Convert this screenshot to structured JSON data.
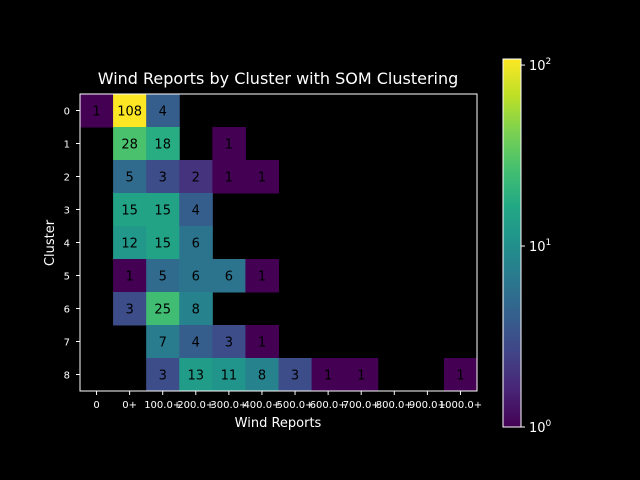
{
  "chart_data": {
    "type": "heatmap",
    "title": "Wind Reports by Cluster with SOM Clustering",
    "xlabel": "Wind Reports",
    "ylabel": "Cluster",
    "x_categories": [
      "0",
      "0+",
      "100.0+",
      "200.0+",
      "300.0+",
      "400.0+",
      "500.0+",
      "600.0+",
      "700.0+",
      "800.0+",
      "900.0+",
      "1000.0+"
    ],
    "y_categories": [
      "0",
      "1",
      "2",
      "3",
      "4",
      "5",
      "6",
      "7",
      "8"
    ],
    "values": [
      [
        1,
        108,
        4,
        null,
        null,
        null,
        null,
        null,
        null,
        null,
        null,
        null
      ],
      [
        null,
        28,
        18,
        null,
        1,
        null,
        null,
        null,
        null,
        null,
        null,
        null
      ],
      [
        null,
        5,
        3,
        2,
        1,
        1,
        null,
        null,
        null,
        null,
        null,
        null
      ],
      [
        null,
        15,
        15,
        4,
        null,
        null,
        null,
        null,
        null,
        null,
        null,
        null
      ],
      [
        null,
        12,
        15,
        6,
        null,
        null,
        null,
        null,
        null,
        null,
        null,
        null
      ],
      [
        null,
        1,
        5,
        6,
        6,
        1,
        null,
        null,
        null,
        null,
        null,
        null
      ],
      [
        null,
        3,
        25,
        8,
        null,
        null,
        null,
        null,
        null,
        null,
        null,
        null
      ],
      [
        null,
        null,
        7,
        4,
        3,
        1,
        null,
        null,
        null,
        null,
        null,
        null
      ],
      [
        null,
        null,
        3,
        13,
        11,
        8,
        3,
        1,
        1,
        null,
        null,
        1
      ]
    ],
    "colorscale": "viridis",
    "color_scale_type": "log",
    "colorbar_range": [
      1,
      108
    ],
    "colorbar_ticks": [
      {
        "value": 1,
        "label": "10",
        "exp": "0"
      },
      {
        "value": 10,
        "label": "10",
        "exp": "1"
      },
      {
        "value": 100,
        "label": "10",
        "exp": "2"
      }
    ],
    "background": "#000000"
  }
}
